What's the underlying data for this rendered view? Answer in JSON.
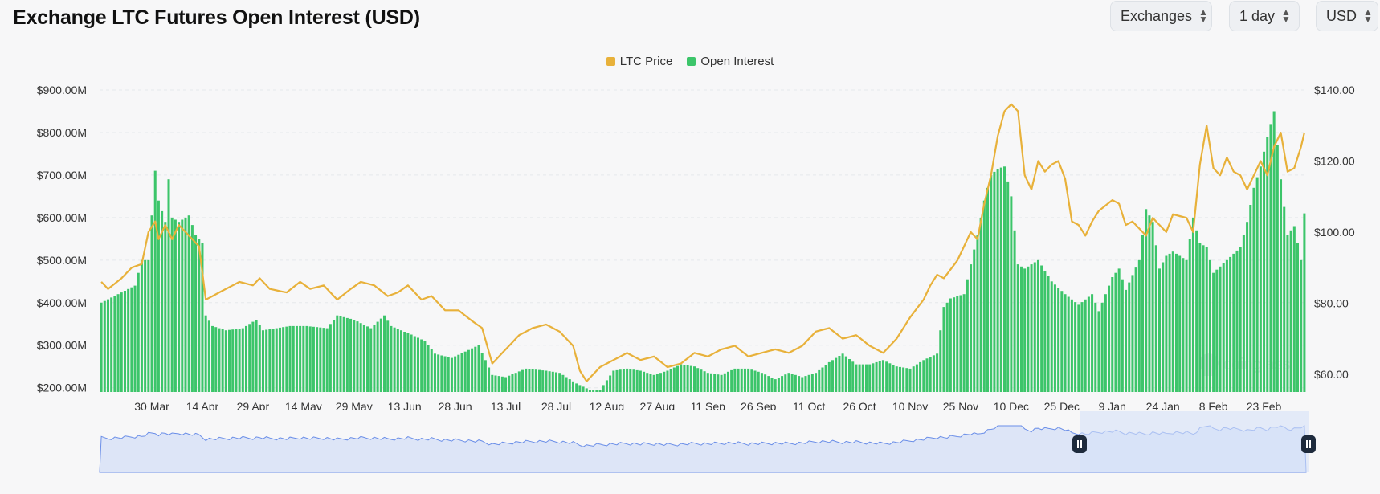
{
  "header": {
    "title": "Exchange LTC Futures Open Interest (USD)"
  },
  "controls": {
    "exchanges": "Exchanges",
    "interval": "1 day",
    "currency": "USD"
  },
  "colors": {
    "price": "#e8b13a",
    "oi": "#3cc56a",
    "brush": "#6a8ee8"
  },
  "chart_data": {
    "type": "bar",
    "title": "Exchange LTC Futures Open Interest (USD)",
    "legend": [
      "LTC Price",
      "Open Interest"
    ],
    "x_start": "2024-03-15",
    "x_end": "2025-02-28",
    "x_tick_labels": [
      "30 Mar",
      "14 Apr",
      "29 Apr",
      "14 May",
      "29 May",
      "13 Jun",
      "28 Jun",
      "13 Jul",
      "28 Jul",
      "12 Aug",
      "27 Aug",
      "11 Sep",
      "26 Sep",
      "11 Oct",
      "26 Oct",
      "10 Nov",
      "25 Nov",
      "10 Dec",
      "25 Dec",
      "9 Jan",
      "24 Jan",
      "8 Feb",
      "23 Feb"
    ],
    "y_left_ticks": [
      "$200.00M",
      "$300.00M",
      "$400.00M",
      "$500.00M",
      "$600.00M",
      "$700.00M",
      "$800.00M",
      "$900.00M"
    ],
    "y_left_range": [
      190,
      900
    ],
    "y_right_ticks": [
      "$60.00",
      "$80.00",
      "$100.00",
      "$120.00",
      "$140.00"
    ],
    "y_right_range": [
      55,
      140
    ],
    "series": [
      {
        "name": "Open Interest",
        "unit": "USD M",
        "axis": "left",
        "keypoints": [
          [
            0,
            400
          ],
          [
            5,
            420
          ],
          [
            10,
            440
          ],
          [
            12,
            500
          ],
          [
            14,
            500
          ],
          [
            16,
            710
          ],
          [
            17,
            640
          ],
          [
            19,
            590
          ],
          [
            20,
            690
          ],
          [
            21,
            600
          ],
          [
            23,
            590
          ],
          [
            26,
            605
          ],
          [
            28,
            560
          ],
          [
            30,
            540
          ],
          [
            31,
            370
          ],
          [
            33,
            345
          ],
          [
            37,
            335
          ],
          [
            42,
            340
          ],
          [
            46,
            360
          ],
          [
            48,
            335
          ],
          [
            56,
            345
          ],
          [
            61,
            345
          ],
          [
            67,
            340
          ],
          [
            70,
            370
          ],
          [
            75,
            360
          ],
          [
            80,
            340
          ],
          [
            84,
            370
          ],
          [
            86,
            345
          ],
          [
            92,
            325
          ],
          [
            96,
            310
          ],
          [
            99,
            280
          ],
          [
            104,
            270
          ],
          [
            112,
            300
          ],
          [
            116,
            230
          ],
          [
            120,
            225
          ],
          [
            126,
            245
          ],
          [
            132,
            240
          ],
          [
            136,
            235
          ],
          [
            141,
            210
          ],
          [
            145,
            195
          ],
          [
            148,
            195
          ],
          [
            152,
            240
          ],
          [
            156,
            245
          ],
          [
            160,
            240
          ],
          [
            164,
            230
          ],
          [
            168,
            240
          ],
          [
            172,
            255
          ],
          [
            176,
            250
          ],
          [
            180,
            235
          ],
          [
            184,
            230
          ],
          [
            188,
            245
          ],
          [
            192,
            245
          ],
          [
            196,
            235
          ],
          [
            200,
            220
          ],
          [
            204,
            235
          ],
          [
            208,
            225
          ],
          [
            212,
            235
          ],
          [
            216,
            260
          ],
          [
            220,
            280
          ],
          [
            224,
            255
          ],
          [
            228,
            255
          ],
          [
            232,
            265
          ],
          [
            236,
            250
          ],
          [
            240,
            245
          ],
          [
            244,
            265
          ],
          [
            248,
            280
          ],
          [
            250,
            390
          ],
          [
            252,
            410
          ],
          [
            256,
            420
          ],
          [
            258,
            490
          ],
          [
            260,
            560
          ],
          [
            262,
            640
          ],
          [
            264,
            700
          ],
          [
            266,
            715
          ],
          [
            268,
            720
          ],
          [
            270,
            650
          ],
          [
            272,
            490
          ],
          [
            274,
            480
          ],
          [
            278,
            500
          ],
          [
            282,
            450
          ],
          [
            286,
            420
          ],
          [
            290,
            395
          ],
          [
            294,
            420
          ],
          [
            296,
            380
          ],
          [
            300,
            460
          ],
          [
            302,
            480
          ],
          [
            304,
            430
          ],
          [
            308,
            500
          ],
          [
            310,
            620
          ],
          [
            312,
            590
          ],
          [
            314,
            480
          ],
          [
            316,
            510
          ],
          [
            318,
            520
          ],
          [
            322,
            500
          ],
          [
            324,
            600
          ],
          [
            326,
            540
          ],
          [
            328,
            530
          ],
          [
            330,
            470
          ],
          [
            334,
            500
          ],
          [
            338,
            530
          ],
          [
            340,
            590
          ],
          [
            342,
            670
          ],
          [
            344,
            720
          ],
          [
            346,
            790
          ],
          [
            348,
            850
          ],
          [
            350,
            690
          ],
          [
            352,
            560
          ],
          [
            354,
            580
          ],
          [
            356,
            500
          ],
          [
            357,
            610
          ]
        ]
      },
      {
        "name": "LTC Price",
        "unit": "USD",
        "axis": "right",
        "keypoints": [
          [
            0,
            86
          ],
          [
            2,
            84
          ],
          [
            6,
            87
          ],
          [
            9,
            90
          ],
          [
            12,
            91
          ],
          [
            14,
            100
          ],
          [
            16,
            103
          ],
          [
            17,
            98
          ],
          [
            19,
            102
          ],
          [
            21,
            98
          ],
          [
            23,
            102
          ],
          [
            26,
            99
          ],
          [
            29,
            96
          ],
          [
            31,
            81
          ],
          [
            33,
            82
          ],
          [
            37,
            84
          ],
          [
            41,
            86
          ],
          [
            45,
            85
          ],
          [
            47,
            87
          ],
          [
            50,
            84
          ],
          [
            55,
            83
          ],
          [
            59,
            86
          ],
          [
            62,
            84
          ],
          [
            66,
            85
          ],
          [
            70,
            81
          ],
          [
            74,
            84
          ],
          [
            77,
            86
          ],
          [
            81,
            85
          ],
          [
            85,
            82
          ],
          [
            88,
            83
          ],
          [
            91,
            85
          ],
          [
            95,
            81
          ],
          [
            98,
            82
          ],
          [
            102,
            78
          ],
          [
            106,
            78
          ],
          [
            110,
            75
          ],
          [
            113,
            73
          ],
          [
            116,
            63
          ],
          [
            120,
            67
          ],
          [
            124,
            71
          ],
          [
            128,
            73
          ],
          [
            132,
            74
          ],
          [
            136,
            72
          ],
          [
            140,
            68
          ],
          [
            142,
            61
          ],
          [
            144,
            58
          ],
          [
            148,
            62
          ],
          [
            152,
            64
          ],
          [
            156,
            66
          ],
          [
            160,
            64
          ],
          [
            164,
            65
          ],
          [
            168,
            62
          ],
          [
            172,
            63
          ],
          [
            176,
            66
          ],
          [
            180,
            65
          ],
          [
            184,
            67
          ],
          [
            188,
            68
          ],
          [
            192,
            65
          ],
          [
            196,
            66
          ],
          [
            200,
            67
          ],
          [
            204,
            66
          ],
          [
            208,
            68
          ],
          [
            212,
            72
          ],
          [
            216,
            73
          ],
          [
            220,
            70
          ],
          [
            224,
            71
          ],
          [
            228,
            68
          ],
          [
            232,
            66
          ],
          [
            236,
            70
          ],
          [
            240,
            76
          ],
          [
            244,
            81
          ],
          [
            246,
            85
          ],
          [
            248,
            88
          ],
          [
            250,
            87
          ],
          [
            254,
            92
          ],
          [
            258,
            100
          ],
          [
            260,
            98
          ],
          [
            262,
            108
          ],
          [
            264,
            116
          ],
          [
            266,
            127
          ],
          [
            268,
            134
          ],
          [
            270,
            136
          ],
          [
            272,
            134
          ],
          [
            274,
            116
          ],
          [
            276,
            112
          ],
          [
            278,
            120
          ],
          [
            280,
            117
          ],
          [
            282,
            119
          ],
          [
            284,
            120
          ],
          [
            286,
            115
          ],
          [
            288,
            103
          ],
          [
            290,
            102
          ],
          [
            292,
            99
          ],
          [
            294,
            103
          ],
          [
            296,
            106
          ],
          [
            300,
            109
          ],
          [
            302,
            108
          ],
          [
            304,
            102
          ],
          [
            306,
            103
          ],
          [
            310,
            99
          ],
          [
            312,
            104
          ],
          [
            314,
            102
          ],
          [
            316,
            100
          ],
          [
            318,
            105
          ],
          [
            322,
            104
          ],
          [
            324,
            100
          ],
          [
            326,
            119
          ],
          [
            328,
            130
          ],
          [
            330,
            118
          ],
          [
            332,
            116
          ],
          [
            334,
            121
          ],
          [
            336,
            117
          ],
          [
            338,
            116
          ],
          [
            340,
            112
          ],
          [
            344,
            120
          ],
          [
            346,
            116
          ],
          [
            348,
            124
          ],
          [
            350,
            128
          ],
          [
            352,
            117
          ],
          [
            354,
            118
          ],
          [
            356,
            124
          ],
          [
            357,
            128
          ]
        ]
      }
    ]
  },
  "watermark": "coinglass"
}
